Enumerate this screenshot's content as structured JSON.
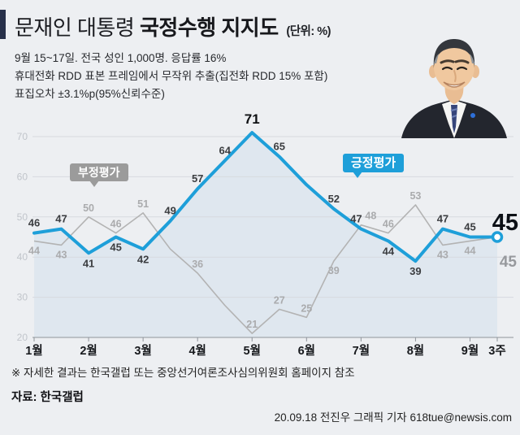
{
  "header": {
    "title_prefix": "문재인 대통령",
    "title_emphasis": "국정수행 지지도",
    "title_unit": "(단위: %)",
    "survey_notes": [
      "9월 15~17일. 전국 성인 1,000명. 응답률 16%",
      "휴대전화 RDD 표본 프레임에서 무작위 추출(집전화 RDD 15% 포함)",
      "표집오차 ±3.1%p(95%신뢰수준)"
    ]
  },
  "chart_data": {
    "type": "line",
    "unit": "%",
    "ylim": [
      20,
      70
    ],
    "yticks": [
      20,
      30,
      40,
      50,
      60,
      70
    ],
    "x_ticks": [
      "1월",
      "2월",
      "3월",
      "4월",
      "5월",
      "6월",
      "7월",
      "8월",
      "9월",
      "3주"
    ],
    "grid": true,
    "legend_position": "inline-badges",
    "area_fill": "#dfe7ef",
    "grid_color": "#d7dadf",
    "axis_color": "#8f949b",
    "series": [
      {
        "name": "긍정평가",
        "color": "#1e9fd9",
        "values": [
          46,
          47,
          41,
          45,
          42,
          49,
          57,
          64,
          71,
          65,
          58,
          52,
          47,
          44,
          39,
          47,
          45,
          45
        ],
        "labels": [
          "46",
          "47",
          "41",
          "45",
          "42",
          "49",
          "57",
          "64",
          "71",
          "65",
          "",
          "52",
          "47",
          "44",
          "39",
          "47",
          "45",
          ""
        ],
        "label_side": [
          "up",
          "up",
          "down",
          "down",
          "down",
          "up",
          "up",
          "up",
          "up",
          "up",
          "up",
          "up",
          "up",
          "down",
          "down",
          "up",
          "up",
          "up"
        ],
        "label_dx": [
          0,
          0,
          0,
          0,
          0,
          0,
          0,
          0,
          0,
          0,
          0,
          0,
          -6,
          0,
          0,
          0,
          0,
          0
        ],
        "peak_index": 8
      },
      {
        "name": "부정평가",
        "color": "#b3b3b3",
        "values": [
          44,
          43,
          50,
          46,
          51,
          42,
          36,
          28,
          21,
          27,
          25,
          39,
          48,
          46,
          53,
          43,
          44,
          45
        ],
        "labels": [
          "44",
          "43",
          "50",
          "46",
          "51",
          "",
          "36",
          "",
          "21",
          "27",
          "25",
          "39",
          "48",
          "46",
          "53",
          "43",
          "44",
          ""
        ],
        "label_side": [
          "down",
          "down",
          "up",
          "up",
          "up",
          "down",
          "up",
          "up",
          "up",
          "up",
          "up",
          "down",
          "up",
          "up",
          "up",
          "down",
          "down",
          "down"
        ],
        "label_dx": [
          0,
          0,
          0,
          0,
          0,
          0,
          0,
          0,
          0,
          0,
          0,
          0,
          12,
          0,
          0,
          0,
          0,
          0
        ]
      }
    ],
    "final": {
      "positive": "45",
      "negative": "45"
    }
  },
  "footer": {
    "note": "※ 자세한 결과는 한국갤럽 또는 중앙선거여론조사심의위원회 홈페이지 참조",
    "source": "자료: 한국갤럽",
    "credit": "20.09.18 전진우 그래픽 기자 618tue@newsis.com"
  }
}
